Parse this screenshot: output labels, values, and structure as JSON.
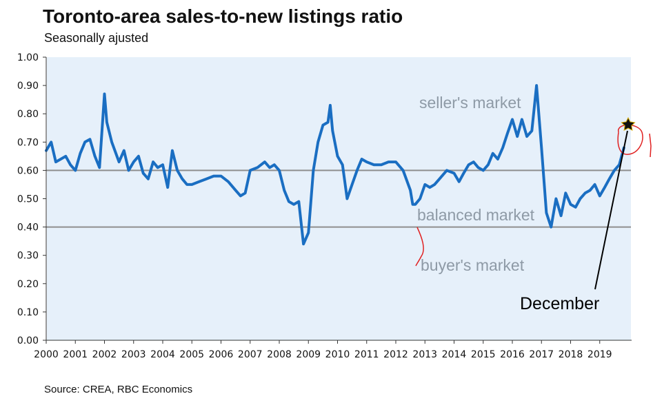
{
  "header": {
    "title": "Toronto-area sales-to-new listings ratio",
    "subtitle": "Seasonally ajusted"
  },
  "footer": {
    "source": "Source: CREA, RBC Economics"
  },
  "colors": {
    "series": "#1a6ec2",
    "plot_background": "#e6f0fa",
    "threshold_lines": "#8e8e8e",
    "zone_labels": "#8e9aa6",
    "markup": "#e02020",
    "annotation": "#000000"
  },
  "chart_data": {
    "type": "line",
    "title": "Toronto-area sales-to-new listings ratio",
    "subtitle": "Seasonally ajusted",
    "xlabel": "",
    "ylabel": "",
    "xlim": [
      2000,
      2020
    ],
    "ylim": [
      0,
      1
    ],
    "y_ticks": [
      "0.00",
      "0.10",
      "0.20",
      "0.30",
      "0.40",
      "0.50",
      "0.60",
      "0.70",
      "0.80",
      "0.90",
      "1.00"
    ],
    "x_ticks": [
      "2000",
      "2001",
      "2002",
      "2003",
      "2004",
      "2005",
      "2006",
      "2007",
      "2008",
      "2009",
      "2010",
      "2011",
      "2012",
      "2013",
      "2014",
      "2015",
      "2016",
      "2017",
      "2018",
      "2019"
    ],
    "grid": false,
    "reference_lines": [
      0.6,
      0.4
    ],
    "zone_labels": [
      "seller's market",
      "balanced market",
      "buyer's market"
    ],
    "annotation": "December",
    "series": [
      {
        "name": "",
        "x": [
          2000.0,
          2000.17,
          2000.33,
          2000.5,
          2000.67,
          2000.83,
          2001.0,
          2001.17,
          2001.33,
          2001.5,
          2001.67,
          2001.83,
          2002.0,
          2002.08,
          2002.25,
          2002.5,
          2002.67,
          2002.83,
          2003.0,
          2003.17,
          2003.33,
          2003.5,
          2003.67,
          2003.83,
          2004.0,
          2004.17,
          2004.33,
          2004.5,
          2004.67,
          2004.83,
          2005.0,
          2005.25,
          2005.5,
          2005.75,
          2006.0,
          2006.25,
          2006.5,
          2006.67,
          2006.83,
          2007.0,
          2007.25,
          2007.5,
          2007.67,
          2007.83,
          2008.0,
          2008.17,
          2008.33,
          2008.5,
          2008.67,
          2008.83,
          2009.0,
          2009.17,
          2009.33,
          2009.5,
          2009.67,
          2009.75,
          2009.83,
          2010.0,
          2010.17,
          2010.33,
          2010.5,
          2010.67,
          2010.83,
          2011.0,
          2011.25,
          2011.5,
          2011.75,
          2012.0,
          2012.25,
          2012.5,
          2012.58,
          2012.67,
          2012.83,
          2013.0,
          2013.17,
          2013.33,
          2013.5,
          2013.75,
          2014.0,
          2014.17,
          2014.33,
          2014.5,
          2014.67,
          2014.83,
          2015.0,
          2015.17,
          2015.33,
          2015.5,
          2015.67,
          2015.83,
          2016.0,
          2016.17,
          2016.33,
          2016.5,
          2016.67,
          2016.83,
          2017.0,
          2017.17,
          2017.33,
          2017.5,
          2017.67,
          2017.83,
          2018.0,
          2018.17,
          2018.33,
          2018.5,
          2018.67,
          2018.83,
          2019.0,
          2019.17,
          2019.33,
          2019.5,
          2019.67,
          2019.83
        ],
        "values": [
          0.67,
          0.7,
          0.63,
          0.64,
          0.65,
          0.62,
          0.6,
          0.66,
          0.7,
          0.71,
          0.65,
          0.61,
          0.87,
          0.77,
          0.7,
          0.63,
          0.67,
          0.6,
          0.63,
          0.65,
          0.59,
          0.57,
          0.63,
          0.61,
          0.62,
          0.54,
          0.67,
          0.6,
          0.57,
          0.55,
          0.55,
          0.56,
          0.57,
          0.58,
          0.58,
          0.56,
          0.53,
          0.51,
          0.52,
          0.6,
          0.61,
          0.63,
          0.61,
          0.62,
          0.6,
          0.53,
          0.49,
          0.48,
          0.49,
          0.34,
          0.38,
          0.6,
          0.7,
          0.76,
          0.77,
          0.83,
          0.74,
          0.65,
          0.62,
          0.5,
          0.55,
          0.6,
          0.64,
          0.63,
          0.62,
          0.62,
          0.63,
          0.63,
          0.6,
          0.53,
          0.48,
          0.48,
          0.5,
          0.55,
          0.54,
          0.55,
          0.57,
          0.6,
          0.59,
          0.56,
          0.59,
          0.62,
          0.63,
          0.61,
          0.6,
          0.62,
          0.66,
          0.64,
          0.68,
          0.73,
          0.78,
          0.72,
          0.78,
          0.72,
          0.74,
          0.9,
          0.68,
          0.45,
          0.4,
          0.5,
          0.44,
          0.52,
          0.48,
          0.47,
          0.5,
          0.52,
          0.53,
          0.55,
          0.51,
          0.54,
          0.57,
          0.6,
          0.62,
          0.68
        ]
      }
    ]
  }
}
